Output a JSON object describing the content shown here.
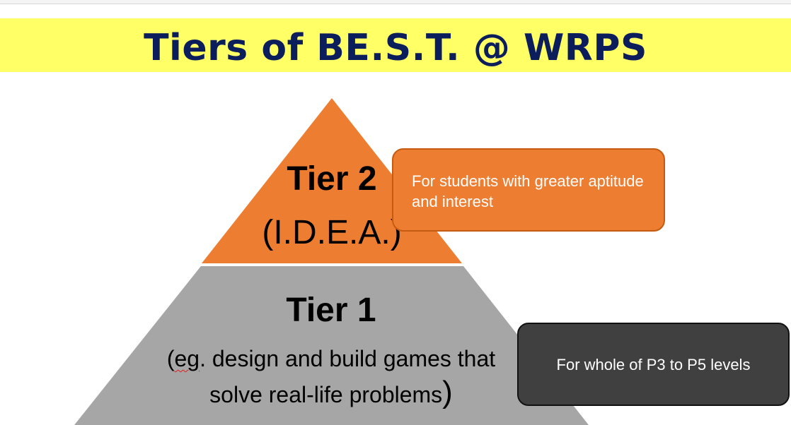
{
  "title": "Tiers of BE.S.T. @ WRPS",
  "colors": {
    "title_band": "#ffff66",
    "title_text": "#0b1e5b",
    "tier2_fill": "#ed7d31",
    "tier1_fill": "#a6a6a6",
    "tier2_callout": "#ed7d31",
    "tier1_callout": "#404040"
  },
  "tier2": {
    "label": "Tier 2",
    "subtitle": "(I.D.E.A.)",
    "callout": "For students with greater aptitude and interest"
  },
  "tier1": {
    "label": "Tier 1",
    "subtitle_open": "(",
    "subtitle_misspelled": "eg",
    "subtitle_body": ". design and build games that solve real-life problems",
    "subtitle_close": ")",
    "callout": "For whole of P3 to P5 levels"
  }
}
